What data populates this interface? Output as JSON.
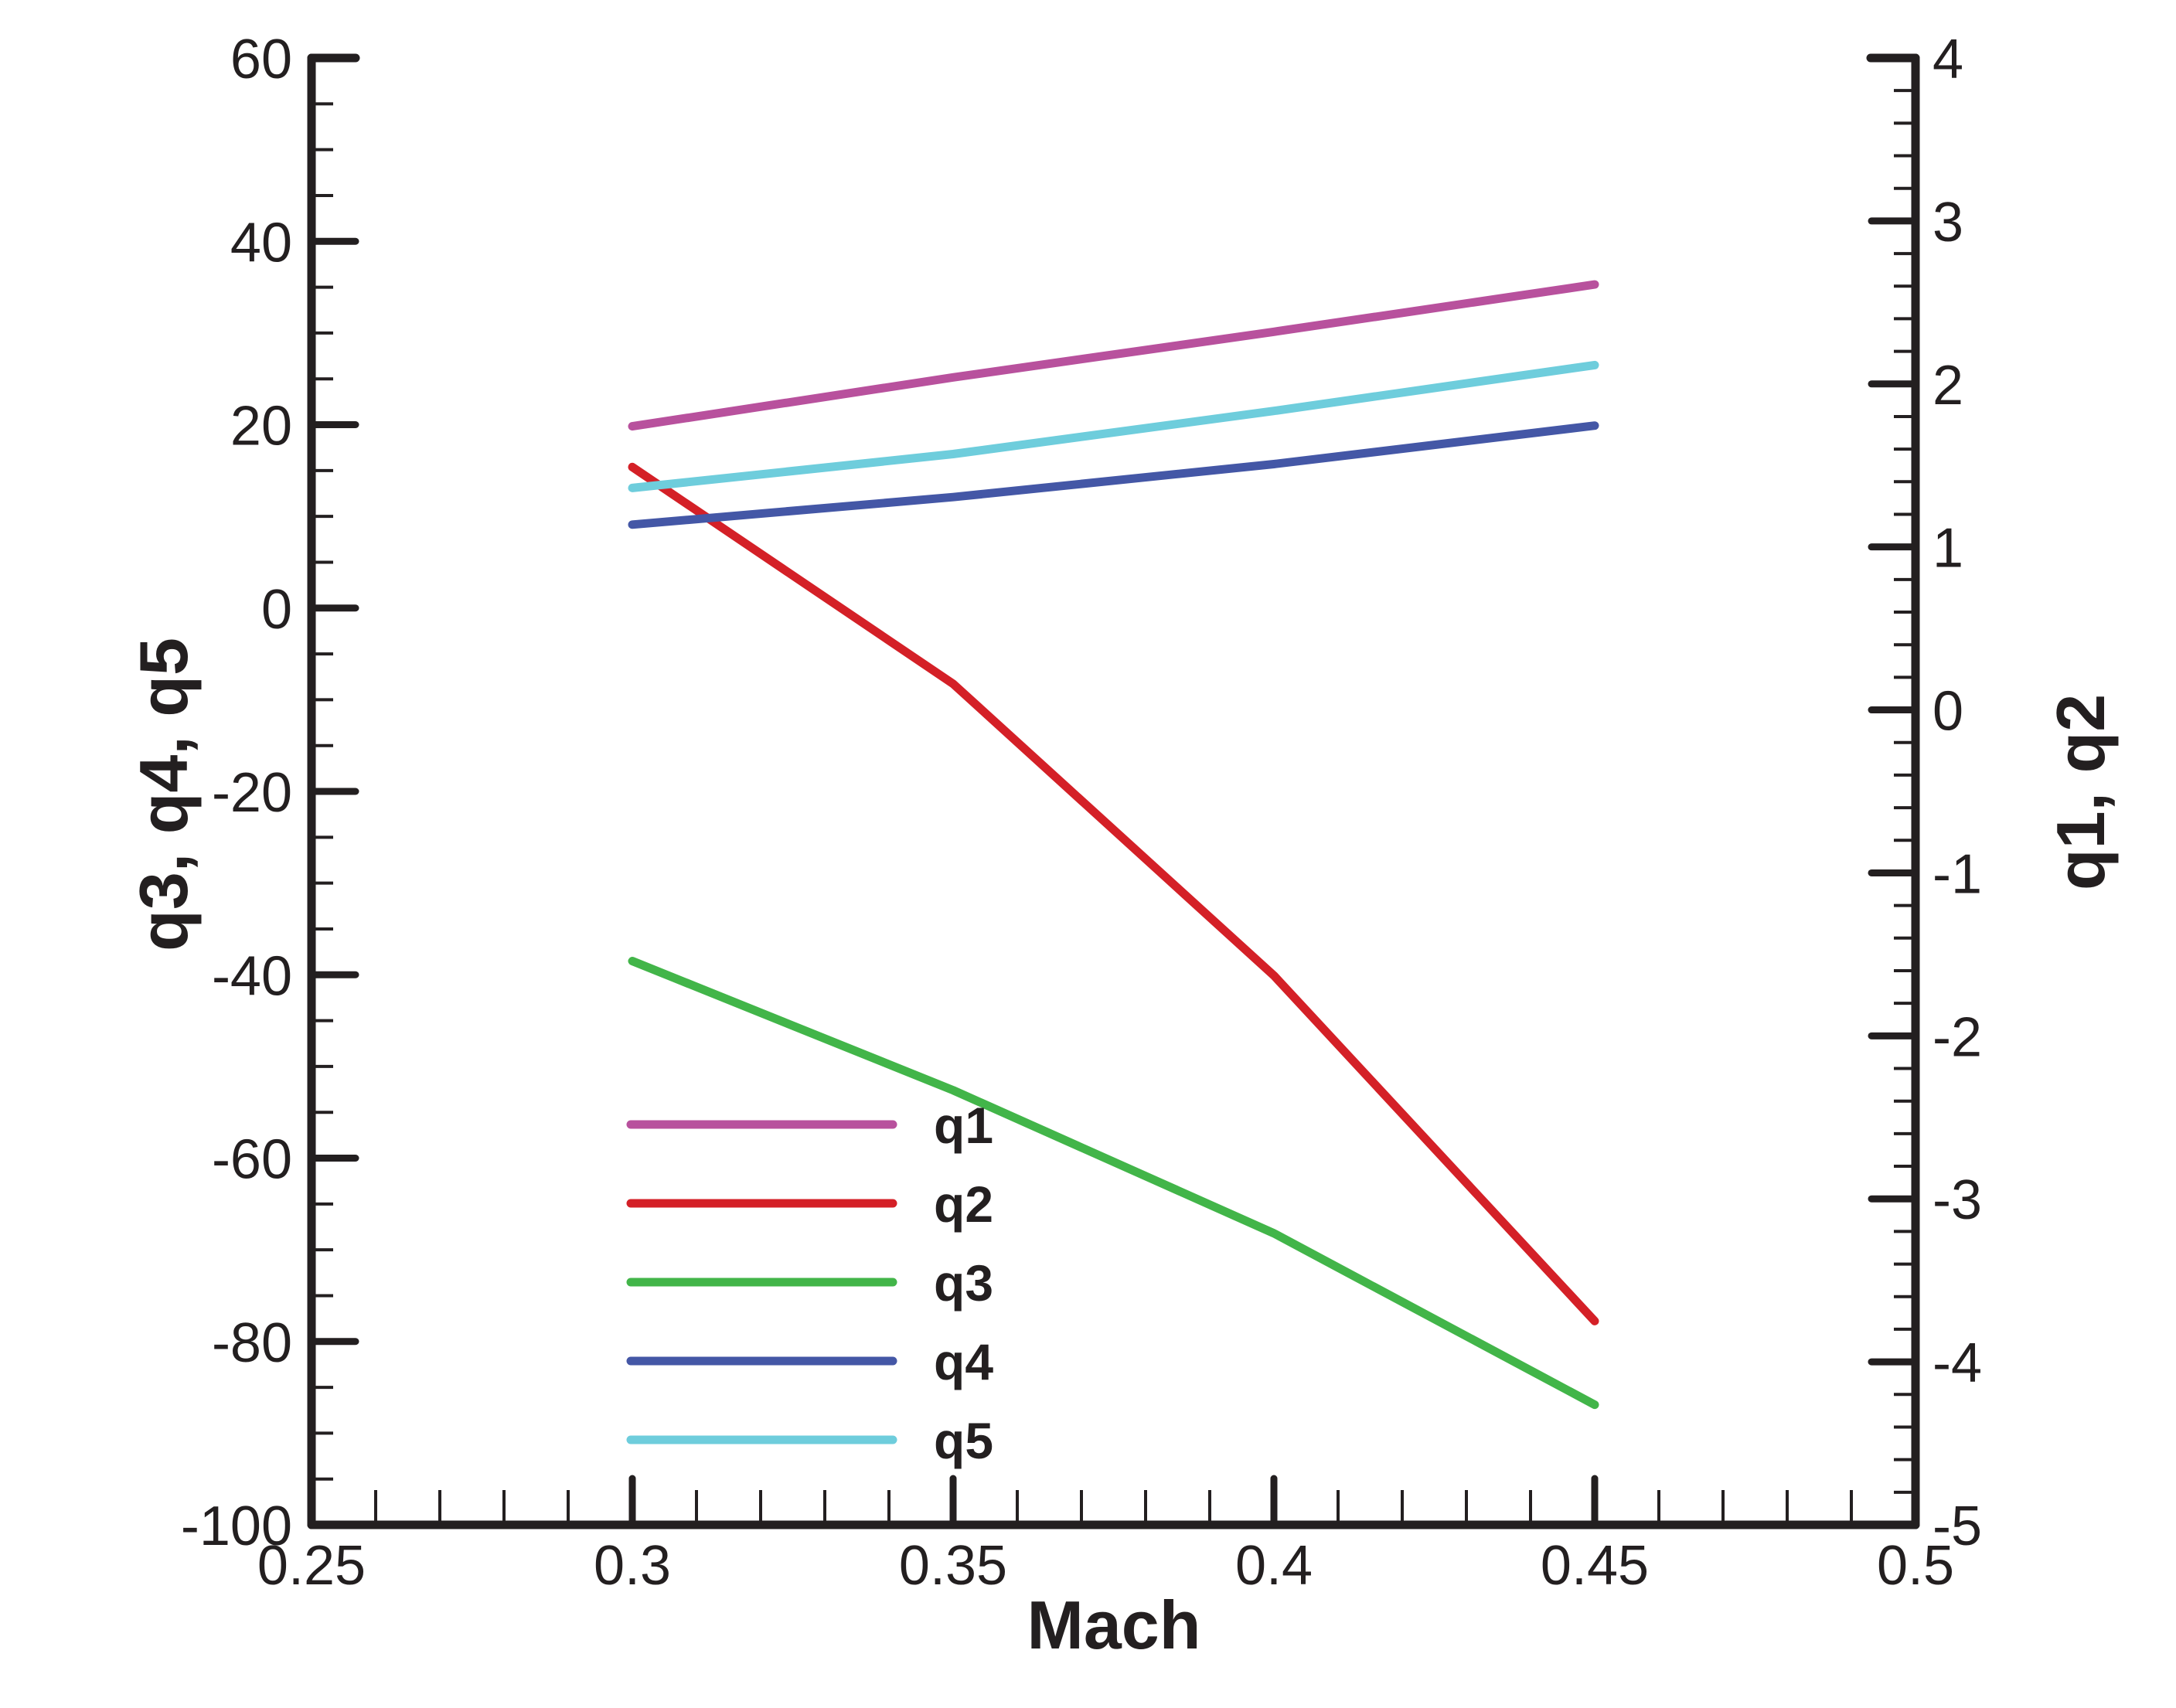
{
  "chart_data": {
    "type": "line",
    "title": "",
    "xlabel": "Mach",
    "ylabel_left": "q3, q4, q5",
    "ylabel_right": "q1, q2",
    "xlim": [
      0.25,
      0.5
    ],
    "ylim_left": [
      -100,
      60
    ],
    "ylim_right": [
      -5,
      4
    ],
    "x_ticks": [
      "0.25",
      "0.3",
      "0.35",
      "0.4",
      "0.45",
      "0.5"
    ],
    "x_tick_values": [
      0.25,
      0.3,
      0.35,
      0.4,
      0.45,
      0.5
    ],
    "y_left_ticks": [
      "60",
      "40",
      "20",
      "0",
      "-20",
      "-40",
      "-60",
      "-80",
      "-100"
    ],
    "y_left_tick_values": [
      60,
      40,
      20,
      0,
      -20,
      -40,
      -60,
      -80,
      -100
    ],
    "y_right_ticks": [
      "4",
      "3",
      "2",
      "1",
      "0",
      "-1",
      "-2",
      "-3",
      "-4",
      "-5"
    ],
    "y_right_tick_values": [
      4,
      3,
      2,
      1,
      0,
      -1,
      -2,
      -3,
      -4,
      -5
    ],
    "x_minor_step": 0.01,
    "y_left_minor_step": 5,
    "y_right_minor_step": 0.2,
    "grid": false,
    "legend_position": "inside lower-left",
    "x": [
      0.3,
      0.35,
      0.4,
      0.45
    ],
    "series": [
      {
        "name": "q1",
        "axis": "right",
        "color": "#B8519D",
        "values": [
          1.74,
          2.04,
          2.32,
          2.61
        ]
      },
      {
        "name": "q2",
        "axis": "right",
        "color": "#D42027",
        "values": [
          1.49,
          0.16,
          -1.63,
          -3.75
        ]
      },
      {
        "name": "q3",
        "axis": "left",
        "color": "#42B549",
        "values": [
          -38.5,
          -52.6,
          -68.2,
          -86.9
        ]
      },
      {
        "name": "q4",
        "axis": "left",
        "color": "#4457A6",
        "values": [
          9.1,
          12.1,
          15.7,
          19.9
        ]
      },
      {
        "name": "q5",
        "axis": "left",
        "color": "#6ECDDC",
        "values": [
          13.1,
          16.8,
          21.5,
          26.5
        ]
      }
    ]
  },
  "legend": {
    "items": [
      {
        "label": "q1",
        "color": "#B8519D"
      },
      {
        "label": "q2",
        "color": "#D42027"
      },
      {
        "label": "q3",
        "color": "#42B549"
      },
      {
        "label": "q4",
        "color": "#4457A6"
      },
      {
        "label": "q5",
        "color": "#6ECDDC"
      }
    ]
  },
  "layout_colors": {
    "axis": "#231f20",
    "background": "#ffffff"
  }
}
